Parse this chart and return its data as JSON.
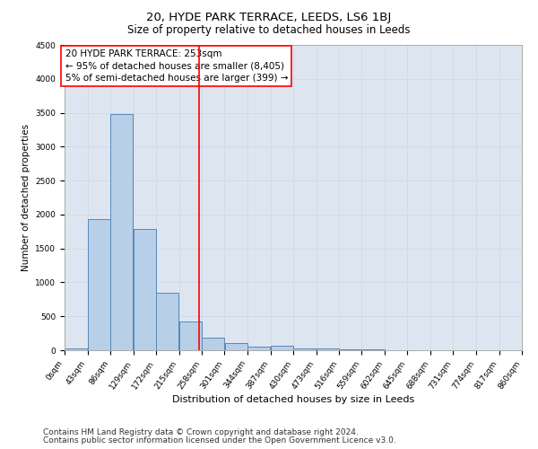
{
  "title": "20, HYDE PARK TERRACE, LEEDS, LS6 1BJ",
  "subtitle": "Size of property relative to detached houses in Leeds",
  "xlabel": "Distribution of detached houses by size in Leeds",
  "ylabel": "Number of detached properties",
  "footnote1": "Contains HM Land Registry data © Crown copyright and database right 2024.",
  "footnote2": "Contains public sector information licensed under the Open Government Licence v3.0.",
  "annotation_line1": "20 HYDE PARK TERRACE: 253sqm",
  "annotation_line2": "← 95% of detached houses are smaller (8,405)",
  "annotation_line3": "5% of semi-detached houses are larger (399) →",
  "vline_x": 253,
  "bar_edges": [
    0,
    43,
    86,
    129,
    172,
    215,
    258,
    301,
    344,
    387,
    430,
    473,
    516,
    559,
    602,
    645,
    688,
    731,
    774,
    817,
    860
  ],
  "bar_heights": [
    30,
    1930,
    3480,
    1790,
    850,
    420,
    180,
    100,
    55,
    60,
    30,
    30,
    8,
    8,
    5,
    0,
    0,
    0,
    0,
    0
  ],
  "bar_color": "#b8cfe8",
  "bar_edge_color": "#5588bb",
  "vline_color": "red",
  "ylim": [
    0,
    4500
  ],
  "xlim": [
    0,
    860
  ],
  "grid_color": "#d0d8e8",
  "background_color": "#dde6f0",
  "title_fontsize": 9.5,
  "subtitle_fontsize": 8.5,
  "xlabel_fontsize": 8,
  "ylabel_fontsize": 7.5,
  "footnote_fontsize": 6.5,
  "annotation_fontsize": 7.5,
  "tick_label_fontsize": 6.5,
  "ytick_labels": [
    "0",
    "500",
    "1000",
    "1500",
    "2000",
    "2500",
    "3000",
    "3500",
    "4000",
    "4500"
  ],
  "ytick_values": [
    0,
    500,
    1000,
    1500,
    2000,
    2500,
    3000,
    3500,
    4000,
    4500
  ]
}
